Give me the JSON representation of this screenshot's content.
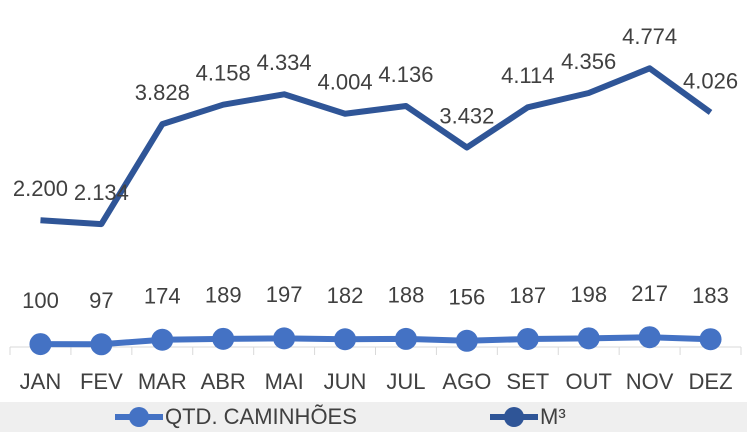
{
  "chart_data": {
    "type": "line",
    "categories": [
      "JAN",
      "FEV",
      "MAR",
      "ABR",
      "MAI",
      "JUN",
      "JUL",
      "AGO",
      "SET",
      "OUT",
      "NOV",
      "DEZ"
    ],
    "series": [
      {
        "name": "QTD. CAMINHÕES",
        "color": "#4472c4",
        "marker": true,
        "values": [
          100,
          97,
          174,
          189,
          197,
          182,
          188,
          156,
          187,
          198,
          217,
          183
        ]
      },
      {
        "name": "M³",
        "color": "#2f5597",
        "marker": false,
        "values": [
          2200,
          2134,
          3828,
          4158,
          4334,
          4004,
          4136,
          3432,
          4114,
          4356,
          4774,
          4026
        ],
        "value_labels": [
          "2.200",
          "2.134",
          "3.828",
          "4.158",
          "4.334",
          "4.004",
          "4.136",
          "3.432",
          "4.114",
          "4.356",
          "4.774",
          "4.026"
        ]
      }
    ],
    "ylim": [
      0,
      6000
    ],
    "legend": "bottom"
  }
}
